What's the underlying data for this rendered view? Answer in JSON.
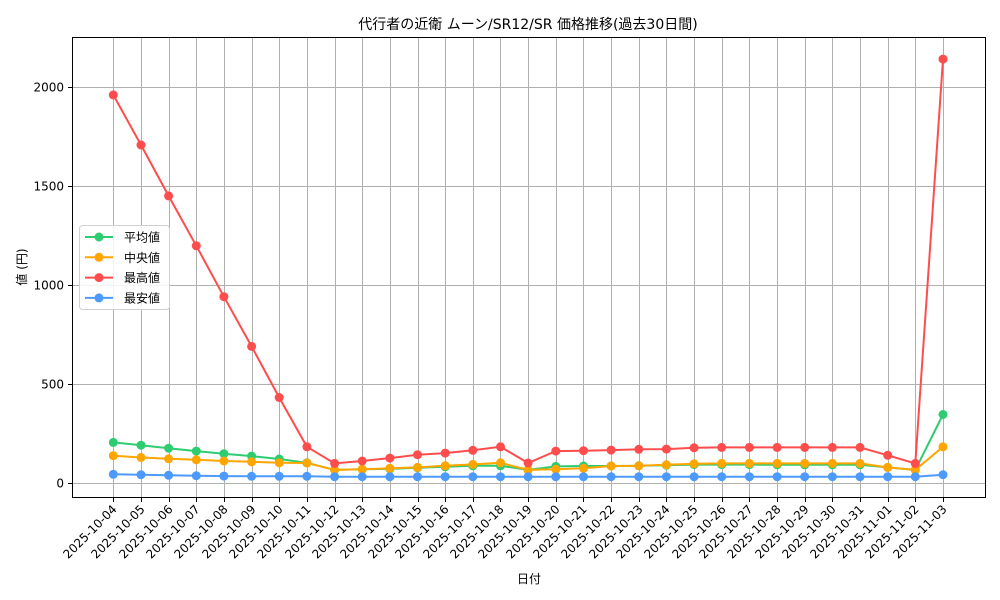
{
  "chart_data": {
    "type": "line",
    "title": "代行者の近衛 ムーン/SR12/SR 価格推移(過去30日間)",
    "xlabel": "日付",
    "ylabel": "値 (円)",
    "ylim": [
      -70,
      2250
    ],
    "yticks": [
      0,
      500,
      1000,
      1500,
      2000
    ],
    "grid": true,
    "legend_position": "center left",
    "x": [
      "2025-10-04",
      "2025-10-05",
      "2025-10-06",
      "2025-10-07",
      "2025-10-08",
      "2025-10-09",
      "2025-10-10",
      "2025-10-11",
      "2025-10-12",
      "2025-10-13",
      "2025-10-14",
      "2025-10-15",
      "2025-10-16",
      "2025-10-17",
      "2025-10-18",
      "2025-10-19",
      "2025-10-20",
      "2025-10-21",
      "2025-10-22",
      "2025-10-23",
      "2025-10-24",
      "2025-10-25",
      "2025-10-26",
      "2025-10-27",
      "2025-10-28",
      "2025-10-29",
      "2025-10-30",
      "2025-10-31",
      "2025-11-01",
      "2025-11-02",
      "2025-11-03"
    ],
    "series": [
      {
        "name": "平均値",
        "color": "#2ecc71",
        "values": [
          205,
          191,
          176,
          161,
          148,
          136,
          121,
          102,
          66,
          69,
          71,
          77,
          82,
          87,
          87,
          66,
          84,
          86,
          86,
          87,
          90,
          93,
          93,
          93,
          92,
          92,
          92,
          92,
          79,
          66,
          346
        ]
      },
      {
        "name": "中央値",
        "color": "#ffa500",
        "values": [
          138,
          129,
          122,
          117,
          111,
          107,
          102,
          101,
          66,
          69,
          74,
          79,
          87,
          94,
          102,
          66,
          69,
          74,
          86,
          87,
          92,
          97,
          99,
          99,
          99,
          99,
          99,
          99,
          79,
          66,
          183
        ]
      },
      {
        "name": "最高値",
        "color": "#ff4d4d",
        "values": [
          1960,
          1707,
          1450,
          1198,
          941,
          690,
          432,
          183,
          99,
          111,
          126,
          143,
          151,
          165,
          183,
          101,
          161,
          163,
          166,
          170,
          171,
          178,
          180,
          180,
          180,
          180,
          180,
          180,
          140,
          99,
          2141
        ]
      },
      {
        "name": "最安値",
        "color": "#4d9aff",
        "values": [
          44,
          42,
          39,
          37,
          35,
          34,
          34,
          34,
          32,
          32,
          32,
          32,
          32,
          32,
          32,
          32,
          32,
          32,
          32,
          32,
          32,
          32,
          32,
          32,
          32,
          32,
          32,
          32,
          32,
          32,
          42
        ]
      }
    ]
  }
}
